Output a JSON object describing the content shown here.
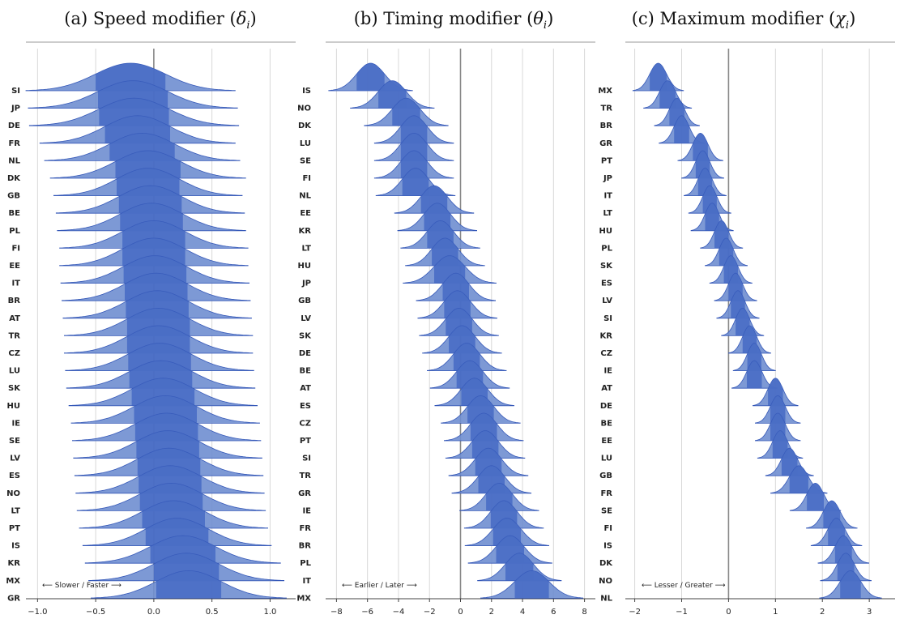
{
  "colors": {
    "fill": "#6f8ed0",
    "stroke": "#3558b8",
    "inner": "#3f64c2",
    "grid": "#d8d8d8",
    "zero": "#888888"
  },
  "chart_data": [
    {
      "type": "ridgeline",
      "title": "(a) Speed modifier (δi)",
      "title_main": "(a) Speed modifier (",
      "title_symbol": "δ",
      "title_sub": "i",
      "title_end": ")",
      "xlim": [
        -1.1,
        1.22
      ],
      "xticks": [
        -1.0,
        -0.5,
        0.0,
        0.5,
        1.0
      ],
      "xtick_labels": [
        "−1.0",
        "−0.5",
        "0.0",
        "0.5",
        "1.0"
      ],
      "direction_note": "⟵ Slower / Faster ⟶",
      "categories": [
        "SI",
        "JP",
        "DE",
        "FR",
        "NL",
        "DK",
        "GB",
        "BE",
        "PL",
        "FI",
        "EE",
        "IT",
        "BR",
        "AT",
        "TR",
        "CZ",
        "LU",
        "SK",
        "HU",
        "IE",
        "SE",
        "LV",
        "ES",
        "NO",
        "LT",
        "PT",
        "IS",
        "KR",
        "MX",
        "GR"
      ],
      "means": [
        -0.2,
        -0.18,
        -0.17,
        -0.14,
        -0.1,
        -0.05,
        -0.05,
        -0.03,
        -0.02,
        0.0,
        0.0,
        0.01,
        0.02,
        0.03,
        0.04,
        0.04,
        0.05,
        0.06,
        0.08,
        0.1,
        0.11,
        0.12,
        0.13,
        0.14,
        0.15,
        0.17,
        0.2,
        0.25,
        0.28,
        0.3
      ],
      "sds": [
        0.3,
        0.3,
        0.3,
        0.28,
        0.28,
        0.28,
        0.27,
        0.27,
        0.27,
        0.27,
        0.27,
        0.27,
        0.27,
        0.27,
        0.27,
        0.27,
        0.27,
        0.27,
        0.27,
        0.27,
        0.27,
        0.27,
        0.27,
        0.27,
        0.27,
        0.27,
        0.27,
        0.28,
        0.28,
        0.28
      ]
    },
    {
      "type": "ridgeline",
      "title": "(b) Timing modifier (θi)",
      "title_main": "(b) Timing modifier (",
      "title_symbol": "θ",
      "title_sub": "i",
      "title_end": ")",
      "xlim": [
        -8.7,
        8.7
      ],
      "xticks": [
        -8,
        -6,
        -4,
        -2,
        0,
        2,
        4,
        6,
        8
      ],
      "xtick_labels": [
        "−8",
        "−6",
        "−4",
        "−2",
        "0",
        "2",
        "4",
        "6",
        "8"
      ],
      "direction_note": "⟵ Earlier / Later ⟶",
      "categories": [
        "IS",
        "NO",
        "DK",
        "LU",
        "SE",
        "FI",
        "NL",
        "EE",
        "KR",
        "LT",
        "HU",
        "JP",
        "GB",
        "LV",
        "SK",
        "DE",
        "BE",
        "AT",
        "ES",
        "CZ",
        "PT",
        "SI",
        "TR",
        "GR",
        "IE",
        "FR",
        "BR",
        "PL",
        "IT",
        "MX"
      ],
      "means": [
        -5.8,
        -4.4,
        -3.5,
        -3.0,
        -3.0,
        -3.0,
        -2.9,
        -1.7,
        -1.5,
        -1.3,
        -1.0,
        -0.7,
        -0.3,
        -0.2,
        -0.1,
        0.1,
        0.4,
        0.6,
        0.9,
        1.3,
        1.5,
        1.6,
        1.8,
        2.0,
        2.5,
        2.8,
        3.0,
        3.2,
        3.8,
        4.6
      ],
      "sds": [
        0.9,
        0.9,
        0.9,
        0.85,
        0.85,
        0.85,
        0.85,
        0.85,
        0.85,
        0.85,
        0.85,
        1.0,
        0.85,
        0.85,
        0.85,
        0.85,
        0.85,
        0.85,
        0.85,
        0.85,
        0.85,
        0.85,
        0.85,
        0.85,
        0.85,
        0.85,
        0.9,
        0.9,
        0.9,
        1.1
      ]
    },
    {
      "type": "ridgeline",
      "title": "(c) Maximum modifier (χi)",
      "title_main": "(c) Maximum modifier (",
      "title_symbol": "χ",
      "title_sub": "i",
      "title_end": ")",
      "xlim": [
        -2.2,
        3.55
      ],
      "xticks": [
        -2,
        -1,
        0,
        1,
        2,
        3
      ],
      "xtick_labels": [
        "−2",
        "−1",
        "0",
        "1",
        "2",
        "3"
      ],
      "direction_note": "⟵ Lesser / Greater ⟶",
      "categories": [
        "MX",
        "TR",
        "BR",
        "GR",
        "PT",
        "JP",
        "IT",
        "LT",
        "HU",
        "PL",
        "SK",
        "ES",
        "LV",
        "SI",
        "KR",
        "CZ",
        "IE",
        "AT",
        "DE",
        "BE",
        "EE",
        "LU",
        "GB",
        "FR",
        "SE",
        "FI",
        "IS",
        "DK",
        "NO",
        "NL"
      ],
      "means": [
        -1.5,
        -1.3,
        -1.1,
        -1.0,
        -0.6,
        -0.55,
        -0.5,
        -0.4,
        -0.35,
        -0.15,
        -0.05,
        0.05,
        0.15,
        0.2,
        0.3,
        0.45,
        0.55,
        0.55,
        1.0,
        1.05,
        1.05,
        1.1,
        1.3,
        1.5,
        1.85,
        2.2,
        2.3,
        2.45,
        2.5,
        2.6
      ],
      "sds": [
        0.18,
        0.17,
        0.16,
        0.16,
        0.16,
        0.15,
        0.15,
        0.15,
        0.15,
        0.15,
        0.15,
        0.15,
        0.15,
        0.15,
        0.15,
        0.15,
        0.15,
        0.16,
        0.16,
        0.16,
        0.16,
        0.16,
        0.17,
        0.2,
        0.18,
        0.18,
        0.18,
        0.18,
        0.18,
        0.22
      ]
    }
  ]
}
